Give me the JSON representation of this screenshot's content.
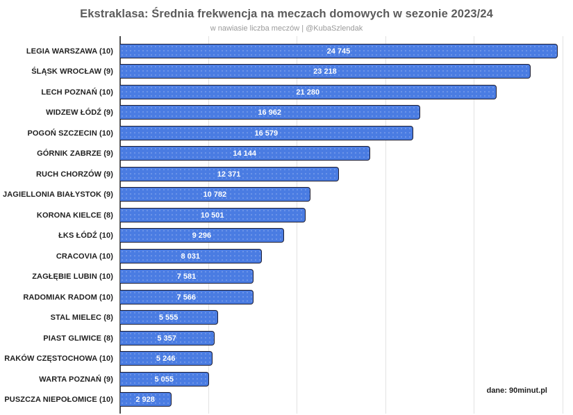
{
  "header": {
    "title": "Ekstraklasa: Średnia frekwencja na meczach domowych w sezonie 2023/24",
    "subtitle": "w nawiasie liczba meczów | @KubaSzlendak"
  },
  "source_note": "dane: 90minut.pl",
  "chart_data": {
    "type": "bar",
    "orientation": "horizontal",
    "title": "Ekstraklasa: Średnia frekwencja na meczach domowych w sezonie 2023/24",
    "subtitle": "w nawiasie liczba meczów | @KubaSzlendak",
    "xlabel": "",
    "ylabel": "",
    "xlim": [
      0,
      25570
    ],
    "gridline_interval": 5000,
    "grid": true,
    "legend": false,
    "categories": [
      "LEGIA WARSZAWA (10)",
      "ŚLĄSK WROCŁAW (9)",
      "LECH POZNAŃ (10)",
      "WIDZEW ŁÓDŹ (9)",
      "POGOŃ SZCZECIN (10)",
      "GÓRNIK ZABRZE (9)",
      "RUCH CHORZÓW (9)",
      "JAGIELLONIA BIAŁYSTOK (9)",
      "KORONA KIELCE (8)",
      "ŁKS ŁÓDŹ (10)",
      "CRACOVIA (10)",
      "ZAGŁĘBIE LUBIN (10)",
      "RADOMIAK RADOM (10)",
      "STAL MIELEC (8)",
      "PIAST GLIWICE (8)",
      "RAKÓW CZĘSTOCHOWA (10)",
      "WARTA POZNAŃ (9)",
      "PUSZCZA NIEPOŁOMICE (10)"
    ],
    "values": [
      24745,
      23218,
      21280,
      16962,
      16579,
      14144,
      12371,
      10782,
      10501,
      9296,
      8031,
      7581,
      7566,
      5555,
      5357,
      5246,
      5055,
      2928
    ],
    "value_labels": [
      "24 745",
      "23 218",
      "21 280",
      "16 962",
      "16 579",
      "14 144",
      "12 371",
      "10 782",
      "10 501",
      "9 296",
      "8 031",
      "7 581",
      "7 566",
      "5 555",
      "5 357",
      "5 246",
      "5 055",
      "2 928"
    ],
    "colors": {
      "bar_fill": "#4a7ce2",
      "bar_border": "#1c1c30",
      "value_text": "#ffffff",
      "gridline": "#e2e2e2",
      "axis_line": "#4d4d4d",
      "title_text": "#5b5b5b",
      "subtitle_text": "#9a9a9a",
      "label_text": "#1f1f1f",
      "source_text": "#212121",
      "background": "#ffffff"
    }
  }
}
